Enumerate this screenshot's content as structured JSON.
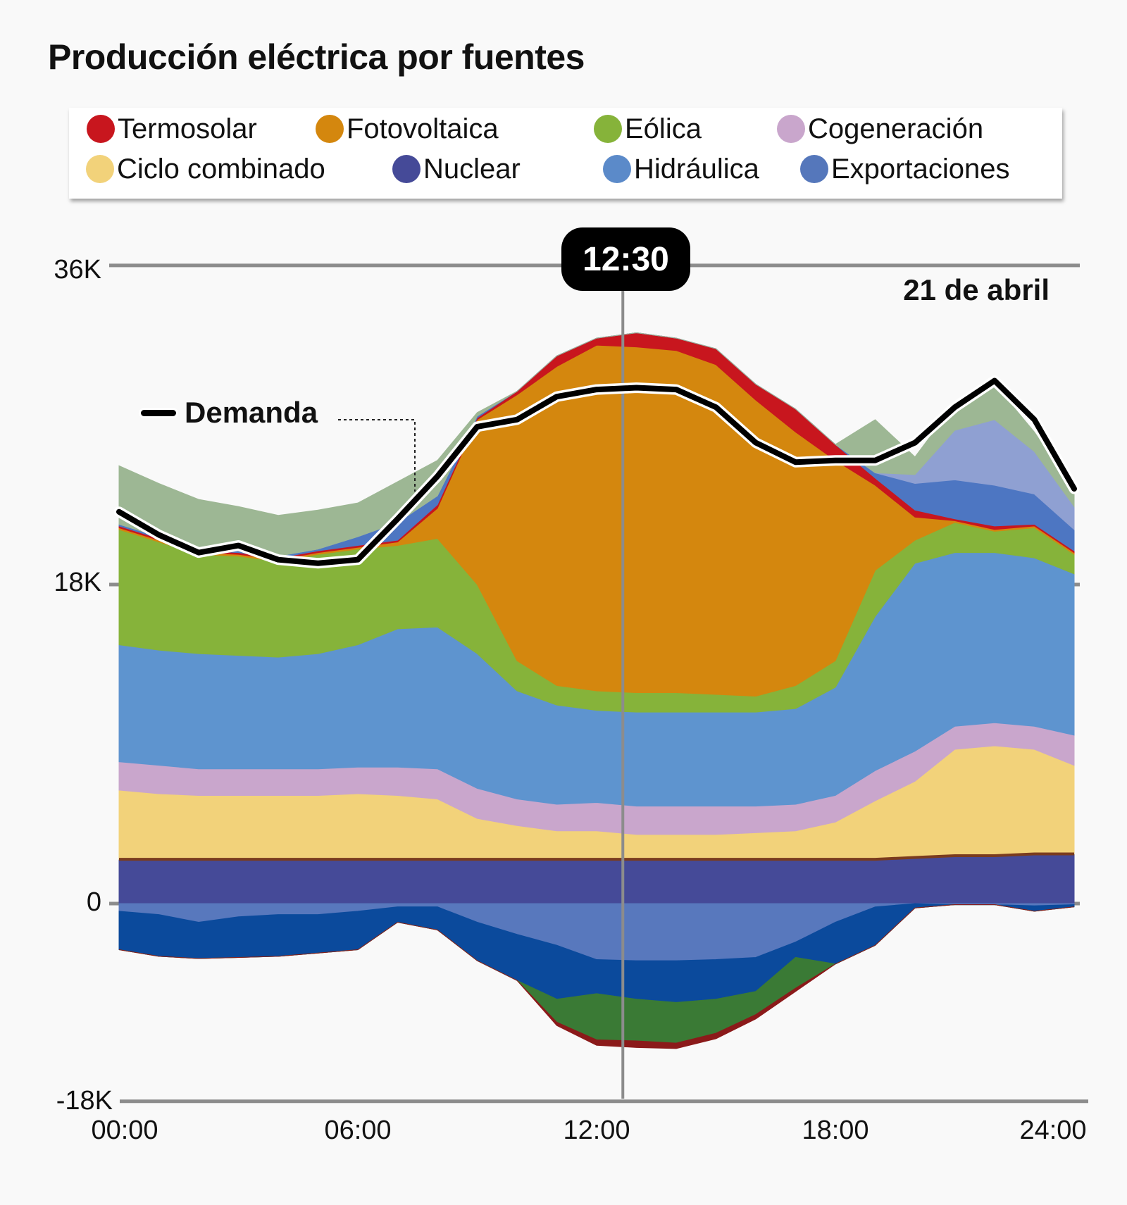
{
  "title": "Producción eléctrica por fuentes",
  "legend": [
    {
      "label": "Termosolar",
      "color": "#c8161e"
    },
    {
      "label": "Fotovoltaica",
      "color": "#d4870e"
    },
    {
      "label": "Eólica",
      "color": "#86b33a"
    },
    {
      "label": "Cogeneración",
      "color": "#c9a6cc"
    },
    {
      "label": "Ciclo combinado",
      "color": "#f2d27a"
    },
    {
      "label": "Nuclear",
      "color": "#454a98"
    },
    {
      "label": "Hidráulica",
      "color": "#5b8ac9"
    },
    {
      "label": "Exportaciones",
      "color": "#5577bb"
    }
  ],
  "cursor": {
    "label": "12:30",
    "x": 12.5
  },
  "date_label": "21 de abril",
  "demand_label": "Demanda",
  "chart_data": {
    "type": "area",
    "stacked": true,
    "title": "Producción eléctrica por fuentes",
    "xlabel": "",
    "ylabel": "",
    "xlim": [
      0,
      24
    ],
    "ylim": [
      -18000,
      36000
    ],
    "grid": "horizontal",
    "legend_placement": "top",
    "xticks": {
      "values": [
        0,
        6,
        12,
        18,
        24
      ],
      "labels": [
        "00:00",
        "06:00",
        "12:00",
        "18:00",
        "24:00"
      ]
    },
    "yticks": {
      "values": [
        36000,
        18000,
        0,
        -18000
      ],
      "labels": [
        "36K",
        "18K",
        "0",
        "-18K"
      ]
    },
    "x": [
      0,
      1,
      2,
      3,
      4,
      5,
      6,
      7,
      8,
      9,
      10,
      11,
      12,
      13,
      14,
      15,
      16,
      17,
      18,
      19,
      20,
      21,
      22,
      23,
      24
    ],
    "series": [
      {
        "name": "Nuclear",
        "color": "#454a98",
        "values": [
          2500,
          2500,
          2500,
          2500,
          2500,
          2500,
          2500,
          2500,
          2500,
          2500,
          2500,
          2500,
          2500,
          2500,
          2500,
          2500,
          2500,
          2500,
          2500,
          2500,
          2600,
          2700,
          2700,
          2800,
          2800
        ]
      },
      {
        "name": "Ciclo combinado",
        "color": "#f2d27a",
        "values": [
          3900,
          3700,
          3600,
          3600,
          3600,
          3600,
          3700,
          3600,
          3400,
          2300,
          1900,
          1600,
          1600,
          1400,
          1400,
          1400,
          1500,
          1600,
          2100,
          3300,
          4300,
          6000,
          6200,
          5900,
          5000
        ]
      },
      {
        "name": "Cogeneración",
        "color": "#c9a6cc",
        "values": [
          1600,
          1600,
          1500,
          1500,
          1500,
          1500,
          1500,
          1600,
          1700,
          1700,
          1500,
          1500,
          1600,
          1600,
          1600,
          1600,
          1500,
          1500,
          1500,
          1700,
          1700,
          1300,
          1300,
          1300,
          1700
        ]
      },
      {
        "name": "Hidráulica",
        "color": "#5e94cf",
        "values": [
          6600,
          6500,
          6500,
          6400,
          6300,
          6500,
          6900,
          7800,
          8000,
          7600,
          6100,
          5600,
          5200,
          5300,
          5300,
          5300,
          5300,
          5400,
          6100,
          8700,
          10600,
          9800,
          9600,
          9500,
          9100
        ]
      },
      {
        "name": "Eólica",
        "color": "#86b33a",
        "values": [
          6500,
          6100,
          5600,
          5600,
          5400,
          5600,
          5400,
          4700,
          5000,
          3900,
          1700,
          1100,
          1100,
          1100,
          1100,
          1000,
          900,
          1300,
          1500,
          2600,
          1300,
          1700,
          1200,
          1700,
          1100
        ]
      },
      {
        "name": "Fotovoltaica",
        "color": "#d4870e",
        "values": [
          100,
          100,
          100,
          100,
          100,
          100,
          100,
          200,
          1700,
          9300,
          15000,
          18000,
          19500,
          19500,
          19300,
          18600,
          16700,
          14300,
          11300,
          4800,
          1300,
          100,
          100,
          100,
          100
        ]
      },
      {
        "name": "Termosolar",
        "color": "#c8161e",
        "values": [
          100,
          100,
          100,
          100,
          100,
          100,
          100,
          100,
          200,
          100,
          200,
          600,
          400,
          800,
          700,
          900,
          900,
          1300,
          900,
          400,
          400,
          100,
          200,
          100,
          100
        ]
      },
      {
        "color": "#4d76c2",
        "values": [
          100,
          100,
          100,
          100,
          100,
          100,
          500,
          1000,
          500,
          100,
          0,
          0,
          0,
          0,
          0,
          0,
          0,
          0,
          0,
          300,
          1500,
          2200,
          2300,
          1700,
          1200
        ]
      },
      {
        "color": "#8fa0d2",
        "values": [
          0,
          0,
          0,
          0,
          0,
          0,
          0,
          0,
          0,
          0,
          0,
          0,
          0,
          0,
          0,
          0,
          0,
          0,
          0,
          0,
          500,
          2800,
          3700,
          2400,
          1300
        ]
      },
      {
        "color": "#9db794",
        "values": [
          3300,
          3000,
          2800,
          2500,
          2300,
          2200,
          1900,
          2300,
          2000,
          200,
          0,
          0,
          0,
          0,
          0,
          0,
          0,
          0,
          0,
          3000,
          1000,
          1500,
          2000,
          1100,
          900
        ]
      }
    ],
    "negative_series": [
      {
        "name": "Exportaciones",
        "color": "#5878bd",
        "values": [
          -700,
          -1000,
          -1700,
          -1200,
          -1000,
          -1000,
          -700,
          -300,
          -300,
          -1700,
          -2800,
          -3800,
          -5100,
          -5200,
          -5200,
          -5100,
          -4900,
          -3500,
          -1700,
          -300,
          0,
          -100,
          -100,
          -200,
          -100
        ]
      },
      {
        "color": "#0b4a9c",
        "values": [
          -3500,
          -3800,
          -3300,
          -3700,
          -3800,
          -3500,
          -3500,
          -1400,
          -2100,
          -3500,
          -4200,
          -4900,
          -3100,
          -3500,
          -3800,
          -3600,
          -3100,
          -1400,
          -3800,
          -3500,
          -400,
          0,
          0,
          -500,
          -200
        ]
      },
      {
        "color": "#3a7a35",
        "values": [
          0,
          0,
          0,
          0,
          0,
          0,
          0,
          0,
          0,
          0,
          0,
          -2100,
          -4200,
          -3800,
          -3700,
          -3100,
          -2100,
          -2800,
          0,
          0,
          0,
          0,
          0,
          0,
          0
        ]
      },
      {
        "color": "#8b1a1a",
        "values": [
          0,
          0,
          0,
          0,
          0,
          0,
          0,
          0,
          0,
          0,
          0,
          -300,
          -500,
          -600,
          -500,
          -500,
          -400,
          -300,
          0,
          0,
          0,
          0,
          0,
          0,
          0
        ]
      }
    ],
    "line": {
      "name": "Demanda",
      "color": "#000000",
      "values": [
        22100,
        20800,
        19800,
        20200,
        19400,
        19200,
        19400,
        21700,
        24100,
        26900,
        27300,
        28600,
        29000,
        29100,
        29000,
        28000,
        26000,
        24900,
        25000,
        25000,
        26000,
        28000,
        29500,
        27300,
        23400
      ]
    }
  }
}
